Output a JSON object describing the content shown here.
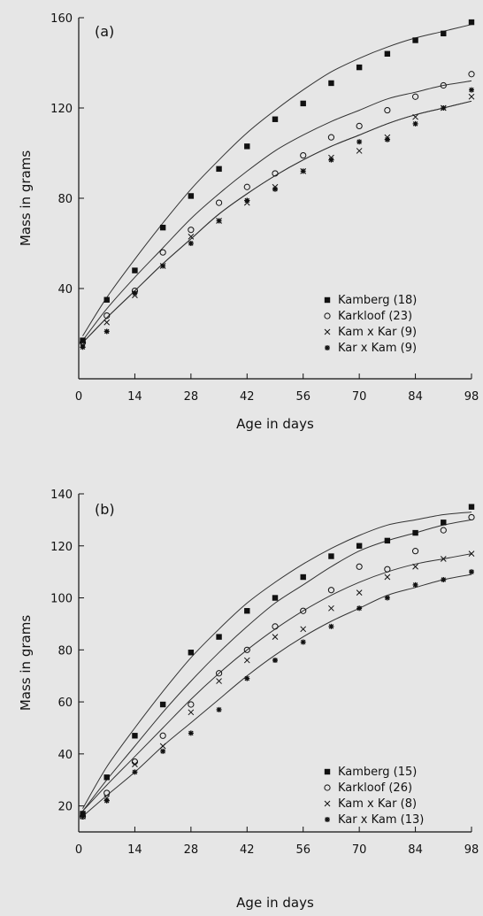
{
  "chart_data": [
    {
      "type": "scatter",
      "panel_label": "(a)",
      "xlabel": "Age in days",
      "ylabel": "Mass in grams",
      "xlim": [
        0,
        98
      ],
      "ylim": [
        0,
        160
      ],
      "xticks": [
        0,
        14,
        28,
        42,
        56,
        70,
        84,
        98
      ],
      "yticks": [
        40,
        80,
        120,
        160
      ],
      "x": [
        1,
        7,
        14,
        21,
        28,
        35,
        42,
        49,
        56,
        63,
        70,
        77,
        84,
        91,
        98
      ],
      "legend_position": "lower-right",
      "series": [
        {
          "name": "Kamberg (18)",
          "marker": "filled-square",
          "values": [
            17,
            35,
            48,
            67,
            81,
            93,
            103,
            115,
            122,
            131,
            138,
            144,
            150,
            153,
            158
          ]
        },
        {
          "name": "Karkloof (23)",
          "marker": "open-circle",
          "values": [
            16,
            28,
            39,
            56,
            66,
            78,
            85,
            91,
            99,
            107,
            112,
            119,
            125,
            130,
            135
          ]
        },
        {
          "name": "Kam x Kar (9)",
          "marker": "x",
          "values": [
            15,
            25,
            37,
            50,
            63,
            70,
            78,
            85,
            92,
            98,
            101,
            107,
            116,
            120,
            125
          ]
        },
        {
          "name": "Kar x Kam (9)",
          "marker": "star",
          "values": [
            14,
            21,
            38,
            50,
            60,
            70,
            79,
            84,
            92,
            97,
            105,
            106,
            113,
            120,
            128
          ]
        }
      ],
      "fit_curves": [
        {
          "values": [
            19,
            36,
            53,
            69,
            84,
            97,
            109,
            119,
            128,
            136,
            142,
            147,
            151,
            154,
            157
          ]
        },
        {
          "values": [
            17,
            31,
            45,
            58,
            71,
            82,
            92,
            101,
            108,
            114,
            119,
            124,
            127,
            130,
            132
          ]
        },
        {
          "values": [
            16,
            27,
            39,
            51,
            62,
            73,
            82,
            90,
            97,
            103,
            108,
            113,
            117,
            120,
            123
          ]
        },
        {
          "values": [
            16,
            27,
            39,
            51,
            62,
            73,
            82,
            90,
            97,
            103,
            108,
            113,
            117,
            120,
            123
          ]
        }
      ]
    },
    {
      "type": "scatter",
      "panel_label": "(b)",
      "xlabel": "Age in days",
      "ylabel": "Mass in grams",
      "xlim": [
        0,
        98
      ],
      "ylim": [
        10,
        140
      ],
      "xticks": [
        0,
        14,
        28,
        42,
        56,
        70,
        84,
        98
      ],
      "yticks": [
        20,
        40,
        60,
        80,
        100,
        120,
        140
      ],
      "x": [
        1,
        7,
        14,
        21,
        28,
        35,
        42,
        49,
        56,
        63,
        70,
        77,
        84,
        91,
        98
      ],
      "legend_position": "lower-right",
      "series": [
        {
          "name": "Kamberg (15)",
          "marker": "filled-square",
          "values": [
            17,
            31,
            47,
            59,
            79,
            85,
            95,
            100,
            108,
            116,
            120,
            122,
            125,
            129,
            135
          ]
        },
        {
          "name": "Karkloof (26)",
          "marker": "open-circle",
          "values": [
            16,
            25,
            37,
            47,
            59,
            71,
            80,
            89,
            95,
            103,
            112,
            111,
            118,
            126,
            131
          ]
        },
        {
          "name": "Kam x Kar (8)",
          "marker": "x",
          "values": [
            16,
            23,
            36,
            43,
            56,
            68,
            76,
            85,
            88,
            96,
            102,
            108,
            112,
            115,
            117
          ]
        },
        {
          "name": "Kar x Kam (13)",
          "marker": "star",
          "values": [
            16,
            22,
            33,
            41,
            48,
            57,
            69,
            76,
            83,
            89,
            96,
            100,
            105,
            107,
            110
          ]
        }
      ],
      "fit_curves": [
        {
          "values": [
            19,
            35,
            50,
            64,
            77,
            88,
            98,
            106,
            113,
            119,
            124,
            128,
            130,
            132,
            133
          ]
        },
        {
          "values": [
            18,
            30,
            43,
            56,
            68,
            79,
            89,
            98,
            105,
            112,
            118,
            122,
            125,
            128,
            130
          ]
        },
        {
          "values": [
            18,
            28,
            39,
            50,
            61,
            71,
            80,
            88,
            95,
            101,
            106,
            110,
            113,
            115,
            117
          ]
        },
        {
          "values": [
            16,
            24,
            33,
            43,
            52,
            61,
            70,
            78,
            85,
            91,
            96,
            101,
            104,
            107,
            109
          ]
        }
      ]
    }
  ]
}
